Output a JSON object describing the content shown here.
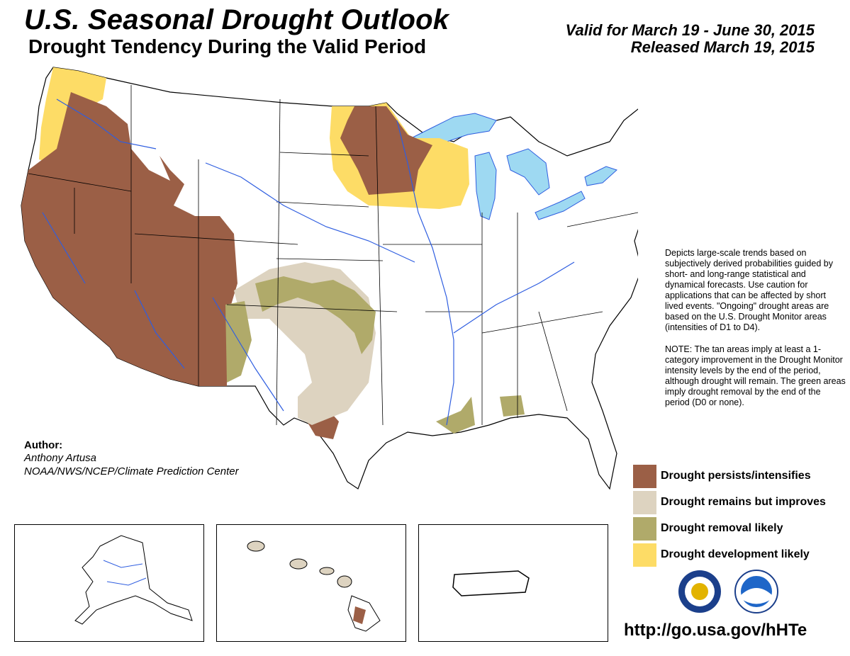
{
  "header": {
    "title": "U.S. Seasonal Drought Outlook",
    "subtitle": "Drought Tendency During the Valid Period",
    "valid_period": "Valid for March 19 - June 30, 2015",
    "released": "Released March 19, 2015"
  },
  "description": {
    "paragraph1": "Depicts large-scale trends based on subjectively derived probabilities guided by short- and long-range statistical and dynamical forecasts. Use caution for applications that can be affected by short lived events. \"Ongoing\" drought areas are based on the U.S. Drought Monitor areas (intensities of D1 to D4).",
    "paragraph2": "NOTE: The tan areas imply at least a 1-category improvement in the Drought Monitor intensity levels by the end of the period, although drought will remain. The green areas imply drought removal by the end of the period (D0 or none)."
  },
  "legend": [
    {
      "label": "Drought persists/intensifies",
      "color": "#9b5f46"
    },
    {
      "label": "Drought remains but improves",
      "color": "#ddd3c0"
    },
    {
      "label": "Drought removal likely",
      "color": "#b0aa6a"
    },
    {
      "label": "Drought development likely",
      "color": "#fddc66"
    }
  ],
  "author": {
    "label": "Author:",
    "name": "Anthony Artusa",
    "org": "NOAA/NWS/NCEP/Climate Prediction Center"
  },
  "url": "http://go.usa.gov/hHTe",
  "colors": {
    "water": "#9ed9f2",
    "rivers": "#2f5ee0",
    "land": "#ffffff",
    "borders": "#000000"
  },
  "insets": [
    "Alaska",
    "Hawaii",
    "Puerto Rico"
  ],
  "logos": [
    "nws-seal-icon",
    "noaa-logo-icon"
  ]
}
